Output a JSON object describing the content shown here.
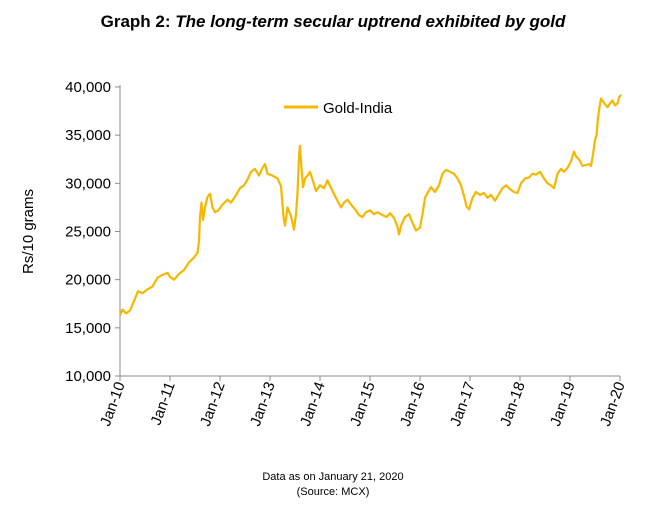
{
  "header": {
    "title_prefix": "Graph 2: ",
    "title_main": "The long-term secular uptrend exhibited by gold"
  },
  "footnote": {
    "line1": "Data as on January 21, 2020",
    "line2": "(Source: MCX)"
  },
  "chart_data": {
    "type": "line",
    "title": "Graph 2: The long-term secular uptrend exhibited by gold",
    "xlabel": "",
    "ylabel": "Rs/10 grams",
    "ylim": [
      10000,
      40000
    ],
    "yticks": [
      10000,
      15000,
      20000,
      25000,
      30000,
      35000,
      40000
    ],
    "ytick_labels": [
      "10,000",
      "15,000",
      "20,000",
      "25,000",
      "30,000",
      "35,000",
      "40,000"
    ],
    "xlim": [
      2010.0,
      2020.0
    ],
    "xticks": [
      2010,
      2011,
      2012,
      2013,
      2014,
      2015,
      2016,
      2017,
      2018,
      2019,
      2020
    ],
    "xtick_labels": [
      "Jan-10",
      "Jan-11",
      "Jan-12",
      "Jan-13",
      "Jan-14",
      "Jan-15",
      "Jan-16",
      "Jan-17",
      "Jan-18",
      "Jan-19",
      "Jan-20"
    ],
    "grid": false,
    "legend": "top-center",
    "line_color": "#F5B800",
    "series": [
      {
        "name": "Gold-India",
        "points": [
          [
            2010.0,
            16300
          ],
          [
            2010.05,
            16900
          ],
          [
            2010.12,
            16500
          ],
          [
            2010.2,
            16800
          ],
          [
            2010.28,
            17800
          ],
          [
            2010.36,
            18800
          ],
          [
            2010.45,
            18600
          ],
          [
            2010.55,
            19000
          ],
          [
            2010.65,
            19300
          ],
          [
            2010.75,
            20200
          ],
          [
            2010.85,
            20500
          ],
          [
            2010.95,
            20700
          ],
          [
            2011.0,
            20300
          ],
          [
            2011.08,
            20000
          ],
          [
            2011.18,
            20600
          ],
          [
            2011.28,
            21000
          ],
          [
            2011.38,
            21800
          ],
          [
            2011.48,
            22300
          ],
          [
            2011.55,
            22800
          ],
          [
            2011.58,
            24000
          ],
          [
            2011.6,
            26500
          ],
          [
            2011.63,
            28000
          ],
          [
            2011.66,
            26200
          ],
          [
            2011.7,
            27500
          ],
          [
            2011.75,
            28600
          ],
          [
            2011.8,
            28900
          ],
          [
            2011.85,
            27500
          ],
          [
            2011.9,
            27000
          ],
          [
            2011.97,
            27200
          ],
          [
            2012.05,
            27800
          ],
          [
            2012.15,
            28300
          ],
          [
            2012.22,
            28000
          ],
          [
            2012.3,
            28600
          ],
          [
            2012.4,
            29500
          ],
          [
            2012.48,
            29800
          ],
          [
            2012.55,
            30400
          ],
          [
            2012.62,
            31200
          ],
          [
            2012.7,
            31500
          ],
          [
            2012.78,
            30800
          ],
          [
            2012.85,
            31600
          ],
          [
            2012.9,
            32000
          ],
          [
            2012.95,
            31000
          ],
          [
            2013.05,
            30800
          ],
          [
            2013.15,
            30500
          ],
          [
            2013.22,
            29700
          ],
          [
            2013.27,
            26500
          ],
          [
            2013.3,
            25600
          ],
          [
            2013.35,
            27500
          ],
          [
            2013.42,
            26600
          ],
          [
            2013.48,
            25200
          ],
          [
            2013.52,
            26800
          ],
          [
            2013.55,
            29000
          ],
          [
            2013.58,
            32800
          ],
          [
            2013.6,
            33900
          ],
          [
            2013.63,
            31500
          ],
          [
            2013.66,
            29600
          ],
          [
            2013.7,
            30500
          ],
          [
            2013.75,
            30800
          ],
          [
            2013.8,
            31200
          ],
          [
            2013.85,
            30400
          ],
          [
            2013.92,
            29200
          ],
          [
            2014.0,
            29800
          ],
          [
            2014.08,
            29500
          ],
          [
            2014.15,
            30300
          ],
          [
            2014.25,
            29200
          ],
          [
            2014.35,
            28200
          ],
          [
            2014.42,
            27500
          ],
          [
            2014.48,
            28000
          ],
          [
            2014.55,
            28300
          ],
          [
            2014.62,
            27800
          ],
          [
            2014.7,
            27300
          ],
          [
            2014.78,
            26700
          ],
          [
            2014.85,
            26500
          ],
          [
            2014.92,
            27000
          ],
          [
            2015.0,
            27200
          ],
          [
            2015.08,
            26800
          ],
          [
            2015.15,
            27000
          ],
          [
            2015.25,
            26700
          ],
          [
            2015.33,
            26500
          ],
          [
            2015.4,
            26900
          ],
          [
            2015.48,
            26400
          ],
          [
            2015.55,
            25500
          ],
          [
            2015.58,
            24700
          ],
          [
            2015.62,
            25600
          ],
          [
            2015.7,
            26500
          ],
          [
            2015.78,
            26800
          ],
          [
            2015.85,
            25900
          ],
          [
            2015.92,
            25100
          ],
          [
            2016.0,
            25400
          ],
          [
            2016.05,
            26800
          ],
          [
            2016.1,
            28500
          ],
          [
            2016.15,
            29000
          ],
          [
            2016.22,
            29600
          ],
          [
            2016.3,
            29100
          ],
          [
            2016.38,
            29800
          ],
          [
            2016.45,
            31000
          ],
          [
            2016.52,
            31400
          ],
          [
            2016.6,
            31200
          ],
          [
            2016.68,
            31000
          ],
          [
            2016.75,
            30500
          ],
          [
            2016.82,
            29800
          ],
          [
            2016.88,
            28700
          ],
          [
            2016.93,
            27600
          ],
          [
            2016.98,
            27300
          ],
          [
            2017.05,
            28500
          ],
          [
            2017.12,
            29100
          ],
          [
            2017.2,
            28800
          ],
          [
            2017.28,
            29000
          ],
          [
            2017.35,
            28500
          ],
          [
            2017.42,
            28800
          ],
          [
            2017.5,
            28200
          ],
          [
            2017.58,
            28900
          ],
          [
            2017.65,
            29500
          ],
          [
            2017.72,
            29800
          ],
          [
            2017.8,
            29400
          ],
          [
            2017.88,
            29100
          ],
          [
            2017.95,
            29000
          ],
          [
            2018.02,
            30000
          ],
          [
            2018.1,
            30500
          ],
          [
            2018.18,
            30600
          ],
          [
            2018.25,
            31000
          ],
          [
            2018.32,
            30900
          ],
          [
            2018.4,
            31200
          ],
          [
            2018.48,
            30500
          ],
          [
            2018.55,
            30000
          ],
          [
            2018.62,
            29800
          ],
          [
            2018.68,
            29500
          ],
          [
            2018.75,
            31000
          ],
          [
            2018.82,
            31500
          ],
          [
            2018.88,
            31200
          ],
          [
            2018.95,
            31600
          ],
          [
            2019.02,
            32300
          ],
          [
            2019.08,
            33300
          ],
          [
            2019.12,
            32800
          ],
          [
            2019.18,
            32500
          ],
          [
            2019.25,
            31800
          ],
          [
            2019.32,
            31900
          ],
          [
            2019.38,
            32000
          ],
          [
            2019.42,
            31800
          ],
          [
            2019.46,
            33000
          ],
          [
            2019.5,
            34500
          ],
          [
            2019.53,
            35000
          ],
          [
            2019.56,
            36800
          ],
          [
            2019.59,
            37900
          ],
          [
            2019.62,
            38800
          ],
          [
            2019.66,
            38500
          ],
          [
            2019.7,
            38200
          ],
          [
            2019.75,
            37900
          ],
          [
            2019.8,
            38300
          ],
          [
            2019.85,
            38600
          ],
          [
            2019.9,
            38100
          ],
          [
            2019.95,
            38300
          ],
          [
            2019.98,
            38900
          ],
          [
            2020.02,
            39200
          ]
        ]
      }
    ]
  }
}
